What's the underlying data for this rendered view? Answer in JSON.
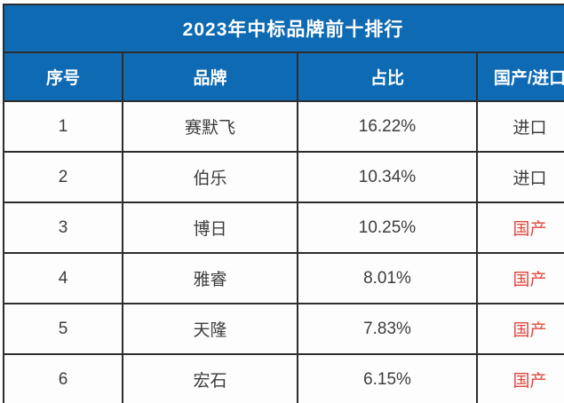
{
  "chart_data": {
    "type": "table",
    "title": "2023年中标品牌前十排行",
    "columns": [
      "序号",
      "品牌",
      "占比",
      "国产/进口"
    ],
    "rows": [
      {
        "rank": "1",
        "brand": "赛默飞",
        "share": "16.22%",
        "origin": "进口"
      },
      {
        "rank": "2",
        "brand": "伯乐",
        "share": "10.34%",
        "origin": "进口"
      },
      {
        "rank": "3",
        "brand": "博日",
        "share": "10.25%",
        "origin": "国产"
      },
      {
        "rank": "4",
        "brand": "雅睿",
        "share": "8.01%",
        "origin": "国产"
      },
      {
        "rank": "5",
        "brand": "天隆",
        "share": "7.83%",
        "origin": "国产"
      },
      {
        "rank": "6",
        "brand": "宏石",
        "share": "6.15%",
        "origin": "国产"
      }
    ],
    "share_values_percent": [
      16.22,
      10.34,
      10.25,
      8.01,
      7.83,
      6.15
    ],
    "layout": "table cropped at right and bottom edges",
    "colors": {
      "header_bg": "#0f6ab4",
      "header_text": "#ffffff",
      "body_text": "#3c3c3c",
      "domestic_text": "#e0463c",
      "border": "#2d2d2d",
      "row_bg": "#fdfdfd"
    }
  }
}
